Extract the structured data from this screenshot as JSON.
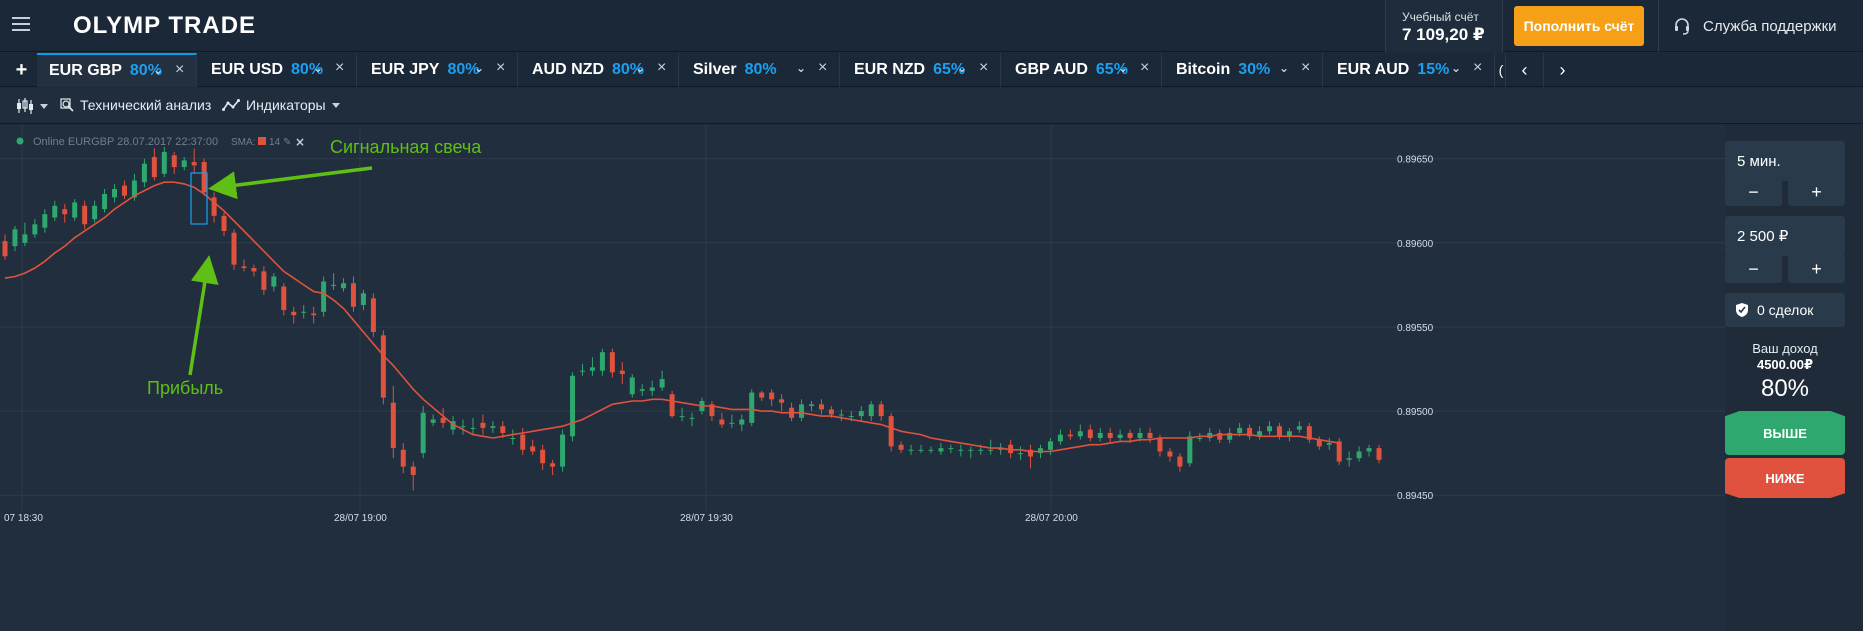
{
  "header": {
    "logo": "OLYMP TRADE",
    "account_label": "Учебный счёт",
    "balance": "7 109,20 ₽",
    "deposit_label": "Пополнить счёт",
    "support_label": "Служба поддержки"
  },
  "tabs": [
    {
      "name": "EUR GBP",
      "pct": "80%",
      "active": true
    },
    {
      "name": "EUR USD",
      "pct": "80%"
    },
    {
      "name": "EUR JPY",
      "pct": "80%"
    },
    {
      "name": "AUD NZD",
      "pct": "80%"
    },
    {
      "name": "Silver",
      "pct": "80%"
    },
    {
      "name": "EUR NZD",
      "pct": "65%"
    },
    {
      "name": "GBP AUD",
      "pct": "65%"
    },
    {
      "name": "Bitcoin",
      "pct": "30%"
    },
    {
      "name": "EUR AUD",
      "pct": "15%"
    }
  ],
  "toolbar": {
    "tech_analysis": "Технический анализ",
    "indicators": "Индикаторы"
  },
  "chart": {
    "status": "Online EURGBP 28.07.2017 22:37:00",
    "sma_label": "SMA:",
    "sma_period": "14",
    "annotation_signal": "Сигнальная свеча",
    "annotation_profit": "Прибыль"
  },
  "sidebar": {
    "time": "5 мин.",
    "amount": "2 500 ₽",
    "minus": "−",
    "plus": "+",
    "deals": "0 сделок",
    "income_label": "Ваш доход",
    "income_value": "4500.00₽",
    "income_pct": "80%",
    "up_label": "ВЫШЕ",
    "down_label": "НИЖЕ"
  },
  "colors": {
    "bull": "#2fa86f",
    "bear": "#e0523d",
    "sma": "#e0523d",
    "accent": "#1b9ff0",
    "annotation": "#5fbf14",
    "box": "#1b9ff0"
  },
  "chart_data": {
    "type": "candlestick",
    "yticks": [
      "0.89650",
      "0.89600",
      "0.89550",
      "0.89500",
      "0.89450"
    ],
    "xticks": [
      "07 18:30",
      "28/07 19:00",
      "28/07 19:30",
      "28/07 20:00"
    ],
    "ylim": [
      0.89443,
      0.8967
    ],
    "candles": [
      {
        "o": 0.89601,
        "c": 0.89592,
        "h": 0.89605,
        "l": 0.8959
      },
      {
        "o": 0.89598,
        "c": 0.89608,
        "h": 0.8961,
        "l": 0.89595
      },
      {
        "o": 0.896,
        "c": 0.89605,
        "h": 0.89612,
        "l": 0.89598
      },
      {
        "o": 0.89605,
        "c": 0.89611,
        "h": 0.89614,
        "l": 0.89603
      },
      {
        "o": 0.89609,
        "c": 0.89617,
        "h": 0.8962,
        "l": 0.89606
      },
      {
        "o": 0.89615,
        "c": 0.89622,
        "h": 0.89625,
        "l": 0.89613
      },
      {
        "o": 0.8962,
        "c": 0.89617,
        "h": 0.89623,
        "l": 0.89612
      },
      {
        "o": 0.89615,
        "c": 0.89624,
        "h": 0.89626,
        "l": 0.89613
      },
      {
        "o": 0.89622,
        "c": 0.89611,
        "h": 0.89625,
        "l": 0.89608
      },
      {
        "o": 0.89614,
        "c": 0.89622,
        "h": 0.89625,
        "l": 0.89612
      },
      {
        "o": 0.8962,
        "c": 0.89629,
        "h": 0.89632,
        "l": 0.89618
      },
      {
        "o": 0.89627,
        "c": 0.89632,
        "h": 0.89635,
        "l": 0.89624
      },
      {
        "o": 0.89634,
        "c": 0.89628,
        "h": 0.89637,
        "l": 0.89626
      },
      {
        "o": 0.89627,
        "c": 0.89637,
        "h": 0.89641,
        "l": 0.89625
      },
      {
        "o": 0.89636,
        "c": 0.89647,
        "h": 0.8965,
        "l": 0.89633
      },
      {
        "o": 0.89651,
        "c": 0.89639,
        "h": 0.89656,
        "l": 0.89637
      },
      {
        "o": 0.89641,
        "c": 0.89654,
        "h": 0.89657,
        "l": 0.89639
      },
      {
        "o": 0.89652,
        "c": 0.89645,
        "h": 0.89654,
        "l": 0.89641
      },
      {
        "o": 0.89645,
        "c": 0.89649,
        "h": 0.89651,
        "l": 0.89643
      },
      {
        "o": 0.89648,
        "c": 0.89646,
        "h": 0.89656,
        "l": 0.89641
      },
      {
        "o": 0.89648,
        "c": 0.8963,
        "h": 0.8965,
        "l": 0.89628
      },
      {
        "o": 0.89627,
        "c": 0.89616,
        "h": 0.8963,
        "l": 0.89612
      },
      {
        "o": 0.89616,
        "c": 0.89607,
        "h": 0.89618,
        "l": 0.89604
      },
      {
        "o": 0.89606,
        "c": 0.89587,
        "h": 0.89608,
        "l": 0.89584
      },
      {
        "o": 0.89586,
        "c": 0.89585,
        "h": 0.8959,
        "l": 0.89583
      },
      {
        "o": 0.89585,
        "c": 0.89583,
        "h": 0.89587,
        "l": 0.8958
      },
      {
        "o": 0.89583,
        "c": 0.89572,
        "h": 0.89586,
        "l": 0.89569
      },
      {
        "o": 0.89574,
        "c": 0.8958,
        "h": 0.89582,
        "l": 0.89571
      },
      {
        "o": 0.89574,
        "c": 0.8956,
        "h": 0.89576,
        "l": 0.89557
      },
      {
        "o": 0.89559,
        "c": 0.89557,
        "h": 0.89562,
        "l": 0.89552
      },
      {
        "o": 0.89559,
        "c": 0.89559,
        "h": 0.89563,
        "l": 0.89555
      },
      {
        "o": 0.89558,
        "c": 0.89557,
        "h": 0.89562,
        "l": 0.89552
      },
      {
        "o": 0.89559,
        "c": 0.89577,
        "h": 0.8958,
        "l": 0.89556
      },
      {
        "o": 0.89575,
        "c": 0.89575,
        "h": 0.89582,
        "l": 0.89572
      },
      {
        "o": 0.89573,
        "c": 0.89576,
        "h": 0.89579,
        "l": 0.89571
      },
      {
        "o": 0.89576,
        "c": 0.89562,
        "h": 0.8958,
        "l": 0.89559
      },
      {
        "o": 0.89563,
        "c": 0.8957,
        "h": 0.89572,
        "l": 0.8956
      },
      {
        "o": 0.89567,
        "c": 0.89547,
        "h": 0.8957,
        "l": 0.89544
      },
      {
        "o": 0.89545,
        "c": 0.89508,
        "h": 0.89548,
        "l": 0.89504
      },
      {
        "o": 0.89505,
        "c": 0.89478,
        "h": 0.89515,
        "l": 0.89472
      },
      {
        "o": 0.89477,
        "c": 0.89467,
        "h": 0.89481,
        "l": 0.89463
      },
      {
        "o": 0.89467,
        "c": 0.89462,
        "h": 0.8947,
        "l": 0.89453
      },
      {
        "o": 0.89475,
        "c": 0.89499,
        "h": 0.89503,
        "l": 0.89472
      },
      {
        "o": 0.89493,
        "c": 0.89495,
        "h": 0.89498,
        "l": 0.89491
      },
      {
        "o": 0.89496,
        "c": 0.89493,
        "h": 0.89502,
        "l": 0.8949
      },
      {
        "o": 0.89489,
        "c": 0.89494,
        "h": 0.89497,
        "l": 0.89486
      },
      {
        "o": 0.89491,
        "c": 0.89491,
        "h": 0.89495,
        "l": 0.89486
      },
      {
        "o": 0.8949,
        "c": 0.8949,
        "h": 0.89496,
        "l": 0.89486
      },
      {
        "o": 0.89493,
        "c": 0.8949,
        "h": 0.89498,
        "l": 0.89486
      },
      {
        "o": 0.8949,
        "c": 0.89491,
        "h": 0.89494,
        "l": 0.89487
      },
      {
        "o": 0.89491,
        "c": 0.89487,
        "h": 0.89494,
        "l": 0.89484
      },
      {
        "o": 0.89484,
        "c": 0.89484,
        "h": 0.89489,
        "l": 0.8948
      },
      {
        "o": 0.89486,
        "c": 0.89477,
        "h": 0.8949,
        "l": 0.89474
      },
      {
        "o": 0.89479,
        "c": 0.89476,
        "h": 0.89483,
        "l": 0.89474
      },
      {
        "o": 0.89477,
        "c": 0.89469,
        "h": 0.8948,
        "l": 0.89465
      },
      {
        "o": 0.89469,
        "c": 0.89467,
        "h": 0.89471,
        "l": 0.89462
      },
      {
        "o": 0.89467,
        "c": 0.89486,
        "h": 0.89489,
        "l": 0.89464
      },
      {
        "o": 0.89485,
        "c": 0.89521,
        "h": 0.89523,
        "l": 0.89482
      },
      {
        "o": 0.89524,
        "c": 0.89524,
        "h": 0.89528,
        "l": 0.89521
      },
      {
        "o": 0.89524,
        "c": 0.89526,
        "h": 0.89532,
        "l": 0.89521
      },
      {
        "o": 0.89524,
        "c": 0.89535,
        "h": 0.89537,
        "l": 0.89521
      },
      {
        "o": 0.89535,
        "c": 0.89523,
        "h": 0.89537,
        "l": 0.8952
      },
      {
        "o": 0.89524,
        "c": 0.89522,
        "h": 0.89529,
        "l": 0.89516
      },
      {
        "o": 0.8951,
        "c": 0.8952,
        "h": 0.89522,
        "l": 0.89508
      },
      {
        "o": 0.89512,
        "c": 0.89513,
        "h": 0.89516,
        "l": 0.89509
      },
      {
        "o": 0.89512,
        "c": 0.89514,
        "h": 0.89518,
        "l": 0.89509
      },
      {
        "o": 0.89514,
        "c": 0.89519,
        "h": 0.89524,
        "l": 0.89512
      },
      {
        "o": 0.8951,
        "c": 0.89497,
        "h": 0.89512,
        "l": 0.89496
      },
      {
        "o": 0.89497,
        "c": 0.89497,
        "h": 0.89502,
        "l": 0.89494
      },
      {
        "o": 0.89496,
        "c": 0.89496,
        "h": 0.89499,
        "l": 0.89491
      },
      {
        "o": 0.895,
        "c": 0.89506,
        "h": 0.89508,
        "l": 0.89498
      },
      {
        "o": 0.89504,
        "c": 0.89497,
        "h": 0.89506,
        "l": 0.89494
      },
      {
        "o": 0.89495,
        "c": 0.89492,
        "h": 0.89499,
        "l": 0.8949
      },
      {
        "o": 0.89493,
        "c": 0.89493,
        "h": 0.89498,
        "l": 0.8949
      },
      {
        "o": 0.89492,
        "c": 0.89495,
        "h": 0.89498,
        "l": 0.89488
      },
      {
        "o": 0.89493,
        "c": 0.89511,
        "h": 0.89513,
        "l": 0.89491
      },
      {
        "o": 0.89511,
        "c": 0.89508,
        "h": 0.89512,
        "l": 0.89506
      },
      {
        "o": 0.89511,
        "c": 0.89507,
        "h": 0.89513,
        "l": 0.89503
      },
      {
        "o": 0.89507,
        "c": 0.89505,
        "h": 0.8951,
        "l": 0.895
      },
      {
        "o": 0.89502,
        "c": 0.89496,
        "h": 0.89505,
        "l": 0.89494
      },
      {
        "o": 0.89496,
        "c": 0.89504,
        "h": 0.89507,
        "l": 0.89494
      },
      {
        "o": 0.89503,
        "c": 0.89504,
        "h": 0.89506,
        "l": 0.895
      },
      {
        "o": 0.89504,
        "c": 0.89501,
        "h": 0.89507,
        "l": 0.89498
      },
      {
        "o": 0.89501,
        "c": 0.89498,
        "h": 0.89503,
        "l": 0.89496
      },
      {
        "o": 0.89498,
        "c": 0.89498,
        "h": 0.89501,
        "l": 0.89494
      },
      {
        "o": 0.89497,
        "c": 0.89497,
        "h": 0.895,
        "l": 0.89494
      },
      {
        "o": 0.89497,
        "c": 0.895,
        "h": 0.89503,
        "l": 0.89494
      },
      {
        "o": 0.89497,
        "c": 0.89504,
        "h": 0.89506,
        "l": 0.89494
      },
      {
        "o": 0.89504,
        "c": 0.89497,
        "h": 0.89506,
        "l": 0.89494
      },
      {
        "o": 0.89497,
        "c": 0.89479,
        "h": 0.89499,
        "l": 0.89476
      },
      {
        "o": 0.8948,
        "c": 0.89477,
        "h": 0.89482,
        "l": 0.89475
      },
      {
        "o": 0.89477,
        "c": 0.89477,
        "h": 0.8948,
        "l": 0.89474
      },
      {
        "o": 0.89477,
        "c": 0.89477,
        "h": 0.8948,
        "l": 0.89475
      },
      {
        "o": 0.89477,
        "c": 0.89477,
        "h": 0.89479,
        "l": 0.89475
      },
      {
        "o": 0.89476,
        "c": 0.89478,
        "h": 0.89481,
        "l": 0.89474
      },
      {
        "o": 0.89478,
        "c": 0.89478,
        "h": 0.8948,
        "l": 0.89475
      },
      {
        "o": 0.89477,
        "c": 0.89477,
        "h": 0.8948,
        "l": 0.89473
      },
      {
        "o": 0.89477,
        "c": 0.89477,
        "h": 0.89479,
        "l": 0.89472
      },
      {
        "o": 0.89477,
        "c": 0.89477,
        "h": 0.8948,
        "l": 0.89474
      },
      {
        "o": 0.89477,
        "c": 0.89477,
        "h": 0.89483,
        "l": 0.89474
      },
      {
        "o": 0.89477,
        "c": 0.89478,
        "h": 0.89481,
        "l": 0.89474
      },
      {
        "o": 0.8948,
        "c": 0.89475,
        "h": 0.89483,
        "l": 0.89472
      },
      {
        "o": 0.89475,
        "c": 0.89475,
        "h": 0.89479,
        "l": 0.89471
      },
      {
        "o": 0.89477,
        "c": 0.89473,
        "h": 0.8948,
        "l": 0.89466
      },
      {
        "o": 0.89475,
        "c": 0.89478,
        "h": 0.8948,
        "l": 0.89472
      },
      {
        "o": 0.89477,
        "c": 0.89482,
        "h": 0.89484,
        "l": 0.89474
      },
      {
        "o": 0.89482,
        "c": 0.89486,
        "h": 0.89489,
        "l": 0.8948
      },
      {
        "o": 0.89486,
        "c": 0.89485,
        "h": 0.89489,
        "l": 0.89483
      },
      {
        "o": 0.89485,
        "c": 0.89488,
        "h": 0.89492,
        "l": 0.89483
      },
      {
        "o": 0.89489,
        "c": 0.89484,
        "h": 0.89492,
        "l": 0.89482
      },
      {
        "o": 0.89484,
        "c": 0.89487,
        "h": 0.8949,
        "l": 0.89482
      },
      {
        "o": 0.89487,
        "c": 0.89484,
        "h": 0.8949,
        "l": 0.89481
      },
      {
        "o": 0.89484,
        "c": 0.89486,
        "h": 0.89489,
        "l": 0.89482
      },
      {
        "o": 0.89487,
        "c": 0.89484,
        "h": 0.89489,
        "l": 0.89481
      },
      {
        "o": 0.89484,
        "c": 0.89487,
        "h": 0.8949,
        "l": 0.89482
      },
      {
        "o": 0.89487,
        "c": 0.89484,
        "h": 0.8949,
        "l": 0.89481
      },
      {
        "o": 0.89484,
        "c": 0.89476,
        "h": 0.89486,
        "l": 0.89473
      },
      {
        "o": 0.89476,
        "c": 0.89473,
        "h": 0.89478,
        "l": 0.8947
      },
      {
        "o": 0.89473,
        "c": 0.89467,
        "h": 0.89475,
        "l": 0.89464
      },
      {
        "o": 0.89469,
        "c": 0.89485,
        "h": 0.89488,
        "l": 0.89467
      },
      {
        "o": 0.89484,
        "c": 0.89484,
        "h": 0.89487,
        "l": 0.89482
      },
      {
        "o": 0.89484,
        "c": 0.89487,
        "h": 0.8949,
        "l": 0.89482
      },
      {
        "o": 0.89487,
        "c": 0.89483,
        "h": 0.89489,
        "l": 0.89481
      },
      {
        "o": 0.89483,
        "c": 0.89487,
        "h": 0.8949,
        "l": 0.89481
      },
      {
        "o": 0.89487,
        "c": 0.8949,
        "h": 0.89493,
        "l": 0.89485
      },
      {
        "o": 0.8949,
        "c": 0.89485,
        "h": 0.89492,
        "l": 0.89483
      },
      {
        "o": 0.89485,
        "c": 0.89488,
        "h": 0.89491,
        "l": 0.89483
      },
      {
        "o": 0.89488,
        "c": 0.89491,
        "h": 0.89494,
        "l": 0.89486
      },
      {
        "o": 0.89491,
        "c": 0.89485,
        "h": 0.89493,
        "l": 0.89483
      },
      {
        "o": 0.89485,
        "c": 0.89488,
        "h": 0.8949,
        "l": 0.89482
      },
      {
        "o": 0.89489,
        "c": 0.89491,
        "h": 0.89494,
        "l": 0.89487
      },
      {
        "o": 0.89491,
        "c": 0.89483,
        "h": 0.89493,
        "l": 0.89481
      },
      {
        "o": 0.89483,
        "c": 0.89479,
        "h": 0.89485,
        "l": 0.89477
      },
      {
        "o": 0.8948,
        "c": 0.89481,
        "h": 0.89484,
        "l": 0.89477
      },
      {
        "o": 0.89482,
        "c": 0.8947,
        "h": 0.89484,
        "l": 0.89468
      },
      {
        "o": 0.89471,
        "c": 0.89472,
        "h": 0.89476,
        "l": 0.89467
      },
      {
        "o": 0.89472,
        "c": 0.89476,
        "h": 0.89479,
        "l": 0.8947
      },
      {
        "o": 0.89476,
        "c": 0.89478,
        "h": 0.8948,
        "l": 0.89473
      },
      {
        "o": 0.89478,
        "c": 0.89471,
        "h": 0.8948,
        "l": 0.89469
      }
    ],
    "sma": [
      0.89579,
      0.8958,
      0.89582,
      0.89585,
      0.89589,
      0.89594,
      0.89598,
      0.89603,
      0.89607,
      0.89611,
      0.89615,
      0.8962,
      0.89624,
      0.89628,
      0.89631,
      0.89634,
      0.89636,
      0.89636,
      0.89635,
      0.89633,
      0.89629,
      0.89624,
      0.89619,
      0.89613,
      0.89607,
      0.89601,
      0.89595,
      0.89589,
      0.89583,
      0.89579,
      0.89575,
      0.89571,
      0.8957,
      0.89566,
      0.89561,
      0.89554,
      0.89547,
      0.8954,
      0.89533,
      0.89527,
      0.8952,
      0.89513,
      0.89507,
      0.89502,
      0.89497,
      0.89492,
      0.89489,
      0.89486,
      0.89485,
      0.89484,
      0.89485,
      0.89486,
      0.89487,
      0.89488,
      0.89489,
      0.8949,
      0.89491,
      0.89493,
      0.89495,
      0.89498,
      0.89501,
      0.89504,
      0.89505,
      0.89506,
      0.89506,
      0.89507,
      0.89507,
      0.89506,
      0.89505,
      0.89504,
      0.89503,
      0.89503,
      0.89502,
      0.89501,
      0.89501,
      0.89501,
      0.895,
      0.895,
      0.89499,
      0.89499,
      0.89499,
      0.89498,
      0.89497,
      0.89497,
      0.89496,
      0.89495,
      0.89494,
      0.89493,
      0.89492,
      0.8949,
      0.89488,
      0.89487,
      0.89486,
      0.89484,
      0.89483,
      0.89482,
      0.89481,
      0.8948,
      0.89479,
      0.89478,
      0.89478,
      0.89477,
      0.89477,
      0.89476,
      0.89476,
      0.89476,
      0.89477,
      0.89478,
      0.89479,
      0.8948,
      0.8948,
      0.89481,
      0.89482,
      0.89482,
      0.89483,
      0.89483,
      0.89484,
      0.89484,
      0.89484,
      0.89484,
      0.89485,
      0.89485,
      0.89486,
      0.89486,
      0.89486,
      0.89486,
      0.89485,
      0.89485,
      0.89485,
      0.89485,
      0.89485,
      0.89484,
      0.89483,
      0.89482,
      0.89481
    ]
  }
}
